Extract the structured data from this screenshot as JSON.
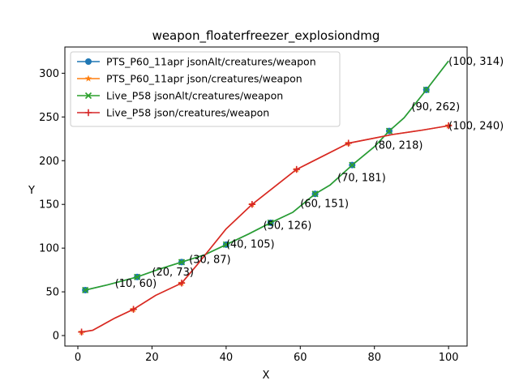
{
  "chart_data": {
    "type": "line",
    "title": "weapon_floaterfreezer_explosiondmg",
    "xlabel": "X",
    "ylabel": "Y",
    "xlim": [
      -3.5,
      105
    ],
    "ylim": [
      -12,
      330
    ],
    "xticks": [
      0,
      20,
      40,
      60,
      80,
      100
    ],
    "yticks": [
      0,
      50,
      100,
      150,
      200,
      250,
      300
    ],
    "grid": false,
    "legend_position": "upper-left",
    "series": [
      {
        "name": "PTS_P60_11apr jsonAlt/creatures/weapon",
        "color": "#1f77b4",
        "marker": "circle",
        "x": [
          2,
          8,
          16,
          22,
          28,
          34,
          40,
          46,
          52,
          58,
          64,
          68,
          74,
          80,
          84,
          88,
          94,
          100
        ],
        "y": [
          52,
          58,
          67,
          76,
          84,
          92,
          104,
          116,
          129,
          141,
          162,
          172,
          195,
          216,
          234,
          249,
          281,
          314
        ],
        "marked_x": [
          2,
          16,
          28,
          40,
          52,
          64,
          74,
          84,
          94
        ]
      },
      {
        "name": "PTS_P60_11apr json/creatures/weapon",
        "color": "#ff7f0e",
        "marker": "star",
        "x": [
          1,
          4,
          10,
          15,
          21,
          28,
          32,
          40,
          47,
          53,
          59,
          66,
          73,
          79,
          85,
          93,
          100
        ],
        "y": [
          4,
          6,
          20,
          30,
          46,
          60,
          80,
          122,
          150,
          170,
          190,
          205,
          220,
          225,
          230,
          235,
          240
        ],
        "marked_x": [
          1,
          15,
          28,
          47,
          59,
          73,
          100
        ]
      },
      {
        "name": "Live_P58 jsonAlt/creatures/weapon",
        "color": "#2ca02c",
        "marker": "x",
        "x": [
          2,
          8,
          16,
          22,
          28,
          34,
          40,
          46,
          52,
          58,
          64,
          68,
          74,
          80,
          84,
          88,
          94,
          100
        ],
        "y": [
          52,
          58,
          67,
          76,
          84,
          92,
          104,
          116,
          129,
          141,
          162,
          172,
          195,
          216,
          234,
          249,
          281,
          314
        ],
        "marked_x": [
          2,
          16,
          28,
          40,
          52,
          64,
          74,
          84,
          94
        ]
      },
      {
        "name": "Live_P58 json/creatures/weapon",
        "color": "#d62728",
        "marker": "plus",
        "x": [
          1,
          4,
          10,
          15,
          21,
          28,
          32,
          40,
          47,
          53,
          59,
          66,
          73,
          79,
          85,
          93,
          100
        ],
        "y": [
          4,
          6,
          20,
          30,
          46,
          60,
          80,
          122,
          150,
          170,
          190,
          205,
          220,
          225,
          230,
          235,
          240
        ],
        "marked_x": [
          1,
          15,
          28,
          47,
          59,
          73,
          100
        ]
      }
    ],
    "annotations": [
      {
        "x": 10,
        "y": 60,
        "text": "(10, 60)"
      },
      {
        "x": 20,
        "y": 73,
        "text": "(20, 73)"
      },
      {
        "x": 30,
        "y": 87,
        "text": "(30, 87)"
      },
      {
        "x": 40,
        "y": 105,
        "text": "(40, 105)"
      },
      {
        "x": 50,
        "y": 126,
        "text": "(50, 126)"
      },
      {
        "x": 60,
        "y": 151,
        "text": "(60, 151)"
      },
      {
        "x": 70,
        "y": 181,
        "text": "(70, 181)"
      },
      {
        "x": 80,
        "y": 218,
        "text": "(80, 218)"
      },
      {
        "x": 90,
        "y": 262,
        "text": "(90, 262)"
      },
      {
        "x": 100,
        "y": 314,
        "text": "(100, 314)"
      },
      {
        "x": 100,
        "y": 240,
        "text": "(100, 240)"
      }
    ]
  }
}
